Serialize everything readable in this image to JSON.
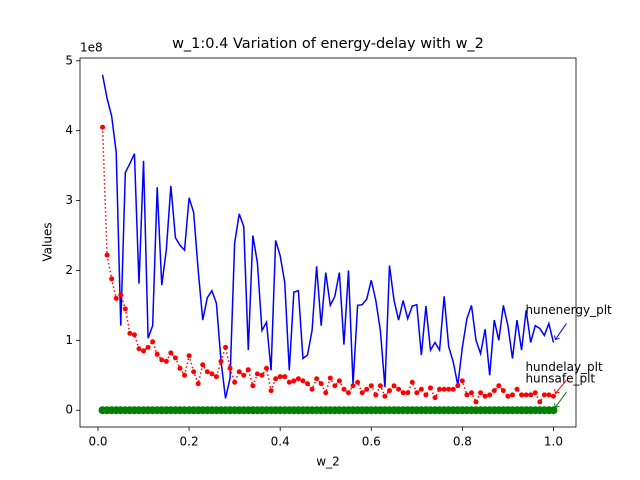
{
  "chart_data": {
    "type": "line",
    "title": "w_1:0.4 Variation of energy-delay with w_2",
    "x_label": "w_2",
    "y_label": "Values",
    "y_offset_label": "1e8",
    "annotate_last": true,
    "xlim": [
      -0.0395,
      1.0495
    ],
    "ylim": [
      -0.24,
      5.04
    ],
    "xticks": [
      {
        "value": 0,
        "label": "0.0"
      },
      0.2,
      0.4,
      0.6,
      0.8,
      {
        "value": 1,
        "label": "1.0"
      }
    ],
    "yticks": [
      0,
      1,
      2,
      3,
      4,
      5
    ],
    "x": [
      0.01,
      0.02,
      0.03,
      0.04,
      0.05,
      0.06,
      0.07,
      0.08,
      0.09,
      0.1,
      0.11,
      0.12,
      0.13,
      0.14,
      0.15,
      0.16,
      0.17,
      0.18,
      0.19,
      0.2,
      0.21,
      0.22,
      0.23,
      0.24,
      0.25,
      0.26,
      0.27,
      0.28,
      0.29,
      0.3,
      0.31,
      0.32,
      0.33,
      0.34,
      0.35,
      0.36,
      0.37,
      0.38,
      0.39,
      0.4,
      0.41,
      0.42,
      0.43,
      0.44,
      0.45,
      0.46,
      0.47,
      0.48,
      0.49,
      0.5,
      0.51,
      0.52,
      0.53,
      0.54,
      0.55,
      0.56,
      0.57,
      0.58,
      0.59,
      0.6,
      0.61,
      0.62,
      0.63,
      0.64,
      0.65,
      0.66,
      0.67,
      0.68,
      0.69,
      0.7,
      0.71,
      0.72,
      0.73,
      0.74,
      0.75,
      0.76,
      0.77,
      0.78,
      0.79,
      0.8,
      0.81,
      0.82,
      0.83,
      0.84,
      0.85,
      0.86,
      0.87,
      0.88,
      0.89,
      0.9,
      0.91,
      0.92,
      0.93,
      0.94,
      0.95,
      0.96,
      0.97,
      0.98,
      0.99,
      1.0
    ],
    "series": [
      {
        "name": "hunenergy_plt",
        "color": "#0000ff",
        "linestyle": "solid",
        "marker": "none",
        "values": [
          4.8,
          4.46,
          4.21,
          3.69,
          1.21,
          3.4,
          3.53,
          3.67,
          1.81,
          3.57,
          1.03,
          1.21,
          3.19,
          1.79,
          2.29,
          3.21,
          2.47,
          2.36,
          2.29,
          3.04,
          2.83,
          2.0,
          1.29,
          1.61,
          1.71,
          1.53,
          0.71,
          0.17,
          0.46,
          2.39,
          2.81,
          2.63,
          0.86,
          2.5,
          2.11,
          1.14,
          1.26,
          0.57,
          2.43,
          2.21,
          1.83,
          0.57,
          1.69,
          1.71,
          0.74,
          0.79,
          1.14,
          2.06,
          1.21,
          1.97,
          1.5,
          1.63,
          1.97,
          0.94,
          2.0,
          0.37,
          1.5,
          1.51,
          1.59,
          1.86,
          1.57,
          1.14,
          0.33,
          2.07,
          1.57,
          1.29,
          1.57,
          1.31,
          1.49,
          1.51,
          0.79,
          1.49,
          0.86,
          0.97,
          0.86,
          1.63,
          0.91,
          0.69,
          0.36,
          0.9,
          1.31,
          1.5,
          1.0,
          0.81,
          1.16,
          0.5,
          1.29,
          1.0,
          1.5,
          1.21,
          0.74,
          1.29,
          0.86,
          1.43,
          0.97,
          1.21,
          1.17,
          1.07,
          1.24,
          0.97
        ]
      },
      {
        "name": "hundelay_plt",
        "color": "#ff0000",
        "linestyle": "dotted",
        "marker": "dot",
        "values": [
          4.05,
          2.22,
          1.88,
          1.6,
          1.65,
          1.45,
          1.1,
          1.08,
          0.88,
          0.85,
          0.9,
          0.98,
          0.8,
          0.72,
          0.7,
          0.82,
          0.75,
          0.6,
          0.5,
          0.78,
          0.55,
          0.38,
          0.65,
          0.55,
          0.52,
          0.48,
          0.7,
          0.9,
          0.6,
          0.4,
          0.55,
          0.5,
          0.58,
          0.35,
          0.52,
          0.5,
          0.6,
          0.28,
          0.45,
          0.48,
          0.48,
          0.4,
          0.42,
          0.45,
          0.42,
          0.38,
          0.3,
          0.45,
          0.38,
          0.25,
          0.46,
          0.35,
          0.42,
          0.3,
          0.25,
          0.35,
          0.4,
          0.25,
          0.3,
          0.35,
          0.22,
          0.35,
          0.2,
          0.28,
          0.35,
          0.3,
          0.25,
          0.25,
          0.4,
          0.25,
          0.3,
          0.22,
          0.32,
          0.18,
          0.3,
          0.3,
          0.3,
          0.3,
          0.35,
          0.42,
          0.22,
          0.25,
          0.12,
          0.25,
          0.2,
          0.22,
          0.28,
          0.35,
          0.28,
          0.2,
          0.22,
          0.3,
          0.22,
          0.22,
          0.22,
          0.25,
          0.12,
          0.22,
          0.22,
          0.2
        ]
      },
      {
        "name": "hunsafe_plt",
        "color": "#008000",
        "linestyle": "solid",
        "marker": "circle",
        "values": [
          0,
          0,
          0,
          0,
          0,
          0,
          0,
          0,
          0,
          0,
          0,
          0,
          0,
          0,
          0,
          0,
          0,
          0,
          0,
          0,
          0,
          0,
          0,
          0,
          0,
          0,
          0,
          0,
          0,
          0,
          0,
          0,
          0,
          0,
          0,
          0,
          0,
          0,
          0,
          0,
          0,
          0,
          0,
          0,
          0,
          0,
          0,
          0,
          0,
          0,
          0,
          0,
          0,
          0,
          0,
          0,
          0,
          0,
          0,
          0,
          0,
          0,
          0,
          0,
          0,
          0,
          0,
          0,
          0,
          0,
          0,
          0,
          0,
          0,
          0,
          0,
          0,
          0,
          0,
          0,
          0,
          0,
          0,
          0,
          0,
          0,
          0,
          0,
          0,
          0,
          0,
          0,
          0,
          0,
          0,
          0,
          0,
          0,
          0,
          0
        ]
      }
    ]
  }
}
